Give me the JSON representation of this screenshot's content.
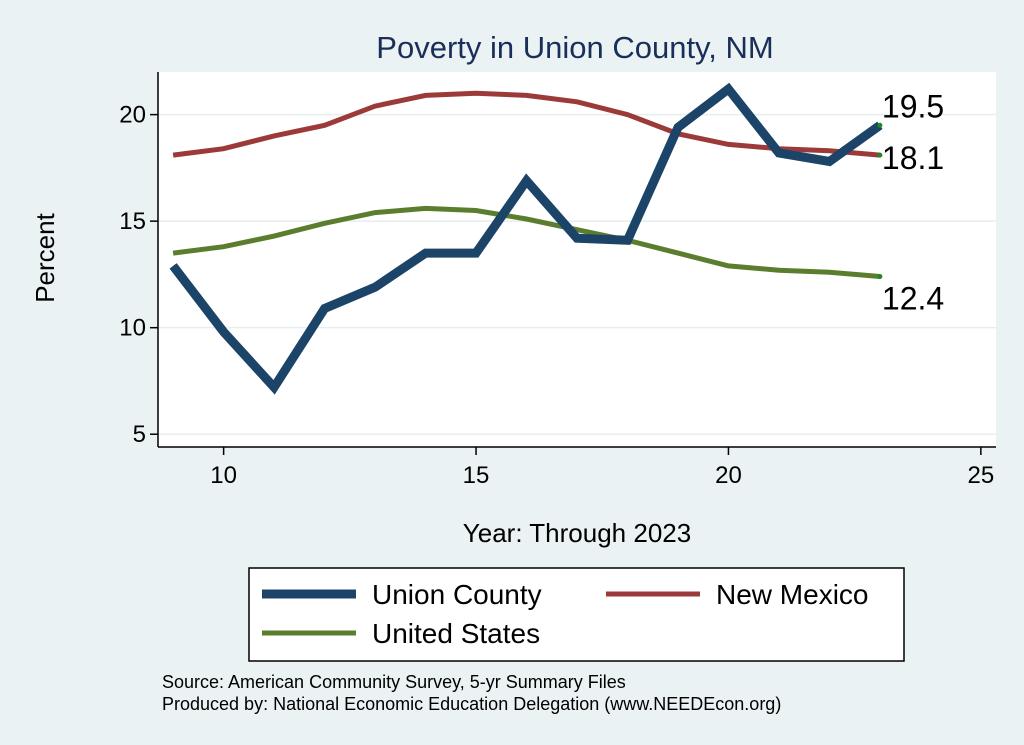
{
  "chart_data": {
    "type": "line",
    "title": "Poverty in Union County, NM",
    "xlabel": "Year: Through 2023",
    "ylabel": "Percent",
    "xlim": [
      8.7,
      25.3
    ],
    "ylim": [
      4.4,
      22
    ],
    "xticks": [
      10,
      15,
      20,
      25
    ],
    "yticks": [
      5,
      10,
      15,
      20
    ],
    "grid": "horizontal",
    "x": [
      9,
      10,
      11,
      12,
      13,
      14,
      15,
      16,
      17,
      18,
      19,
      20,
      21,
      22,
      23
    ],
    "series": [
      {
        "name": "Union County",
        "color": "#1b4468",
        "values": [
          12.9,
          9.8,
          7.2,
          10.9,
          11.9,
          13.5,
          13.5,
          16.9,
          14.2,
          14.1,
          19.4,
          21.2,
          18.2,
          17.8,
          19.5
        ],
        "end_label": "19.5"
      },
      {
        "name": "New Mexico",
        "color": "#9c3a3a",
        "values": [
          18.1,
          18.4,
          19.0,
          19.5,
          20.4,
          20.9,
          21.0,
          20.9,
          20.6,
          20.0,
          19.1,
          18.6,
          18.4,
          18.3,
          18.1
        ],
        "end_label": "18.1"
      },
      {
        "name": "United States",
        "color": "#5b7e2e",
        "values": [
          13.5,
          13.8,
          14.3,
          14.9,
          15.4,
          15.6,
          15.5,
          15.1,
          14.6,
          14.1,
          13.5,
          12.9,
          12.7,
          12.6,
          12.4
        ],
        "end_label": "12.4"
      }
    ],
    "legend_position": "bottom",
    "source_lines": [
      "Source: American Community Survey, 5-yr Summary Files",
      "Produced by: National Economic Education Delegation (www.NEEDEcon.org)"
    ]
  }
}
